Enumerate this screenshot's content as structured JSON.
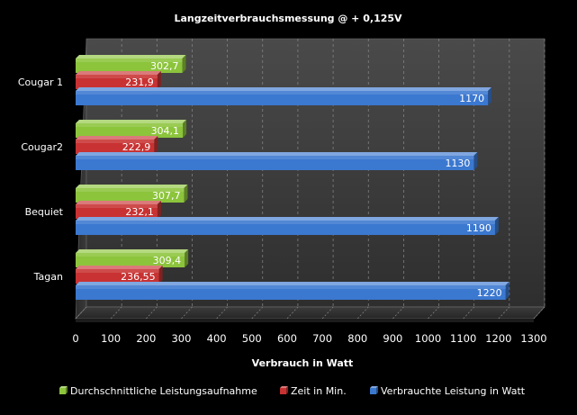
{
  "chart_data": {
    "type": "bar",
    "orientation": "horizontal",
    "three_d": true,
    "title": "Langzeitverbrauchsmessung  @ + 0,125V",
    "xlabel": "Verbrauch in Watt",
    "ylabel": "",
    "xlim": [
      0,
      1300
    ],
    "x_ticks": [
      "0",
      "100",
      "200",
      "300",
      "400",
      "500",
      "600",
      "700",
      "800",
      "900",
      "1000",
      "1100",
      "1200",
      "1300"
    ],
    "grid": "vertical dashed",
    "legend_position": "bottom",
    "categories": [
      "Cougar 1",
      "Cougar2",
      "Bequiet",
      "Tagan"
    ],
    "series": [
      {
        "name": "Durchschnittliche Leistungsaufnahme",
        "color": "#8cc43c",
        "values": [
          302.7,
          304.1,
          307.7,
          309.4
        ],
        "labels": [
          "302,7",
          "304,1",
          "307,7",
          "309,4"
        ]
      },
      {
        "name": "Zeit in Min.",
        "color": "#c83232",
        "values": [
          231.9,
          222.9,
          232.1,
          236.55
        ],
        "labels": [
          "231,9",
          "222,9",
          "232,1",
          "236,55"
        ]
      },
      {
        "name": "Verbrauchte Leistung in Watt",
        "color": "#3b78d0",
        "values": [
          1170,
          1130,
          1190,
          1220
        ],
        "labels": [
          "1170",
          "1130",
          "1190",
          "1220"
        ]
      }
    ]
  }
}
